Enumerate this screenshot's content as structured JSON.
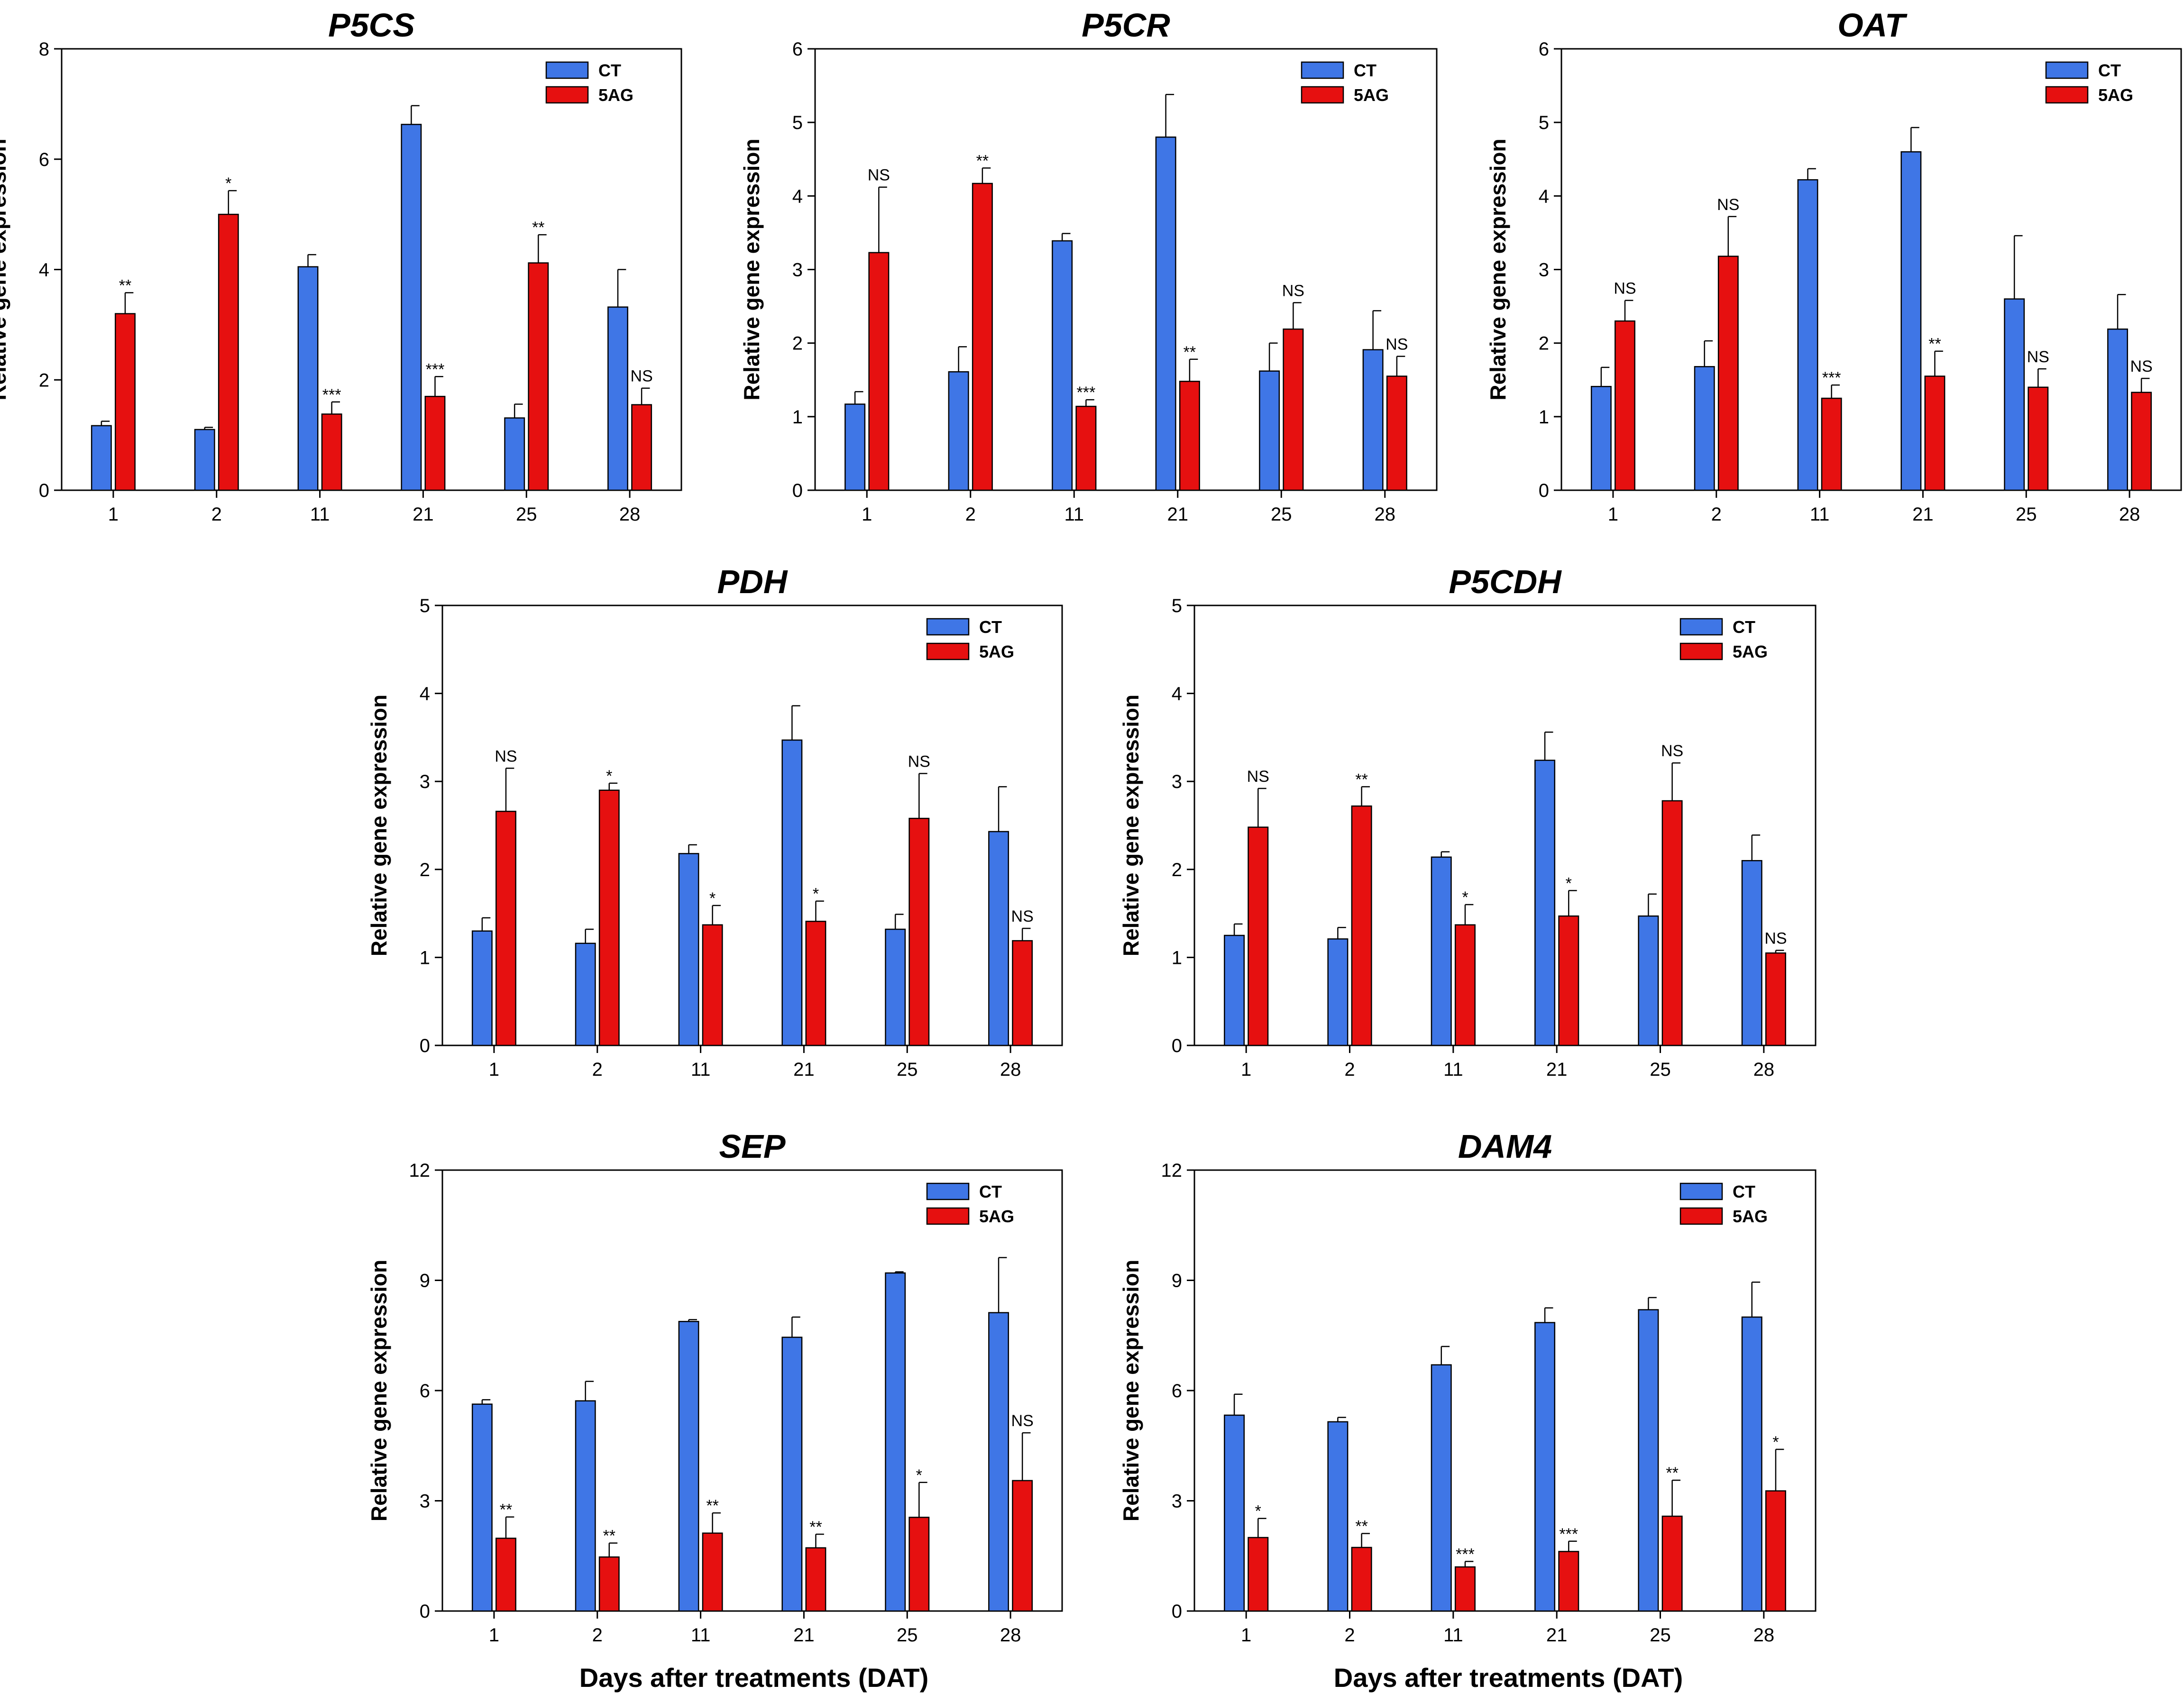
{
  "figure": {
    "x_axis_title": "Days after treatments (DAT)"
  },
  "chart_data": [
    {
      "type": "bar",
      "title": "P5CS",
      "xlabel": "",
      "ylabel": "Relative gene expression",
      "ylim": [
        0,
        8
      ],
      "yticks": [
        "0",
        "2",
        "4",
        "6",
        "8"
      ],
      "categories": [
        "1",
        "2",
        "11",
        "21",
        "25",
        "28"
      ],
      "colors": {
        "CT": "#3f76e6",
        "5AG": "#e61010"
      },
      "series": [
        {
          "name": "CT",
          "values": [
            1.17,
            1.1,
            4.05,
            6.63,
            1.31,
            3.32
          ],
          "errors": [
            0.08,
            0.04,
            0.22,
            0.34,
            0.25,
            0.68
          ]
        },
        {
          "name": "5AG",
          "values": [
            3.2,
            5.0,
            1.38,
            1.7,
            4.12,
            1.55
          ],
          "errors": [
            0.38,
            0.43,
            0.22,
            0.36,
            0.51,
            0.3
          ]
        }
      ],
      "significance": [
        "**",
        "*",
        "***",
        "***",
        "**",
        "NS"
      ]
    },
    {
      "type": "bar",
      "title": "P5CR",
      "xlabel": "",
      "ylabel": "Relative gene expression",
      "ylim": [
        0,
        6
      ],
      "yticks": [
        "0",
        "1",
        "2",
        "3",
        "4",
        "5",
        "6"
      ],
      "categories": [
        "1",
        "2",
        "11",
        "21",
        "25",
        "28"
      ],
      "colors": {
        "CT": "#3f76e6",
        "5AG": "#e61010"
      },
      "series": [
        {
          "name": "CT",
          "values": [
            1.17,
            1.61,
            3.39,
            4.8,
            1.62,
            1.91
          ],
          "errors": [
            0.17,
            0.34,
            0.1,
            0.58,
            0.38,
            0.53
          ]
        },
        {
          "name": "5AG",
          "values": [
            3.23,
            4.17,
            1.14,
            1.48,
            2.19,
            1.55
          ],
          "errors": [
            0.89,
            0.21,
            0.09,
            0.3,
            0.36,
            0.27
          ]
        }
      ],
      "significance": [
        "NS",
        "**",
        "***",
        "**",
        "NS",
        "NS"
      ]
    },
    {
      "type": "bar",
      "title": "OAT",
      "xlabel": "",
      "ylabel": "Relative gene expression",
      "ylim": [
        0,
        6
      ],
      "yticks": [
        "0",
        "1",
        "2",
        "3",
        "4",
        "5",
        "6"
      ],
      "categories": [
        "1",
        "2",
        "11",
        "21",
        "25",
        "28"
      ],
      "colors": {
        "CT": "#3f76e6",
        "5AG": "#e61010"
      },
      "series": [
        {
          "name": "CT",
          "values": [
            1.41,
            1.68,
            4.22,
            4.6,
            2.6,
            2.19
          ],
          "errors": [
            0.26,
            0.35,
            0.15,
            0.33,
            0.86,
            0.47
          ]
        },
        {
          "name": "5AG",
          "values": [
            2.3,
            3.18,
            1.25,
            1.55,
            1.4,
            1.33
          ],
          "errors": [
            0.28,
            0.54,
            0.18,
            0.34,
            0.25,
            0.19
          ]
        }
      ],
      "significance": [
        "NS",
        "NS",
        "***",
        "**",
        "NS",
        "NS"
      ]
    },
    {
      "type": "bar",
      "title": "PDH",
      "xlabel": "",
      "ylabel": "Relative gene expression",
      "ylim": [
        0,
        5
      ],
      "yticks": [
        "0",
        "1",
        "2",
        "3",
        "4",
        "5"
      ],
      "categories": [
        "1",
        "2",
        "11",
        "21",
        "25",
        "28"
      ],
      "colors": {
        "CT": "#3f76e6",
        "5AG": "#e61010"
      },
      "series": [
        {
          "name": "CT",
          "values": [
            1.3,
            1.16,
            2.18,
            3.47,
            1.32,
            2.43
          ],
          "errors": [
            0.15,
            0.16,
            0.1,
            0.39,
            0.17,
            0.51
          ]
        },
        {
          "name": "5AG",
          "values": [
            2.66,
            2.9,
            1.37,
            1.41,
            2.58,
            1.19
          ],
          "errors": [
            0.49,
            0.08,
            0.22,
            0.23,
            0.51,
            0.14
          ]
        }
      ],
      "significance": [
        "NS",
        "*",
        "*",
        "*",
        "NS",
        "NS"
      ]
    },
    {
      "type": "bar",
      "title": "P5CDH",
      "xlabel": "",
      "ylabel": "Relative gene expression",
      "ylim": [
        0,
        5
      ],
      "yticks": [
        "0",
        "1",
        "2",
        "3",
        "4",
        "5"
      ],
      "categories": [
        "1",
        "2",
        "11",
        "21",
        "25",
        "28"
      ],
      "colors": {
        "CT": "#3f76e6",
        "5AG": "#e61010"
      },
      "series": [
        {
          "name": "CT",
          "values": [
            1.25,
            1.21,
            2.14,
            3.24,
            1.47,
            2.1
          ],
          "errors": [
            0.13,
            0.13,
            0.06,
            0.32,
            0.25,
            0.29
          ]
        },
        {
          "name": "5AG",
          "values": [
            2.48,
            2.72,
            1.37,
            1.47,
            2.78,
            1.05
          ],
          "errors": [
            0.44,
            0.22,
            0.23,
            0.29,
            0.43,
            0.03
          ]
        }
      ],
      "significance": [
        "NS",
        "**",
        "*",
        "*",
        "NS",
        "NS"
      ]
    },
    {
      "type": "bar",
      "title": "SEP",
      "xlabel": "",
      "ylabel": "Relative gene expression",
      "ylim": [
        0,
        12
      ],
      "yticks": [
        "0",
        "3",
        "6",
        "9",
        "12"
      ],
      "categories": [
        "1",
        "2",
        "11",
        "21",
        "25",
        "28"
      ],
      "colors": {
        "CT": "#3f76e6",
        "5AG": "#e61010"
      },
      "series": [
        {
          "name": "CT",
          "values": [
            5.63,
            5.72,
            7.88,
            7.45,
            9.2,
            8.12
          ],
          "errors": [
            0.12,
            0.53,
            0.05,
            0.55,
            0.03,
            1.5
          ]
        },
        {
          "name": "5AG",
          "values": [
            1.98,
            1.47,
            2.12,
            1.72,
            2.55,
            3.55
          ],
          "errors": [
            0.58,
            0.38,
            0.55,
            0.37,
            0.95,
            1.3
          ]
        }
      ],
      "significance": [
        "**",
        "**",
        "**",
        "**",
        "*",
        "NS"
      ]
    },
    {
      "type": "bar",
      "title": "DAM4",
      "xlabel": "",
      "ylabel": "Relative gene expression",
      "ylim": [
        0,
        12
      ],
      "yticks": [
        "0",
        "3",
        "6",
        "9",
        "12"
      ],
      "categories": [
        "1",
        "2",
        "11",
        "21",
        "25",
        "28"
      ],
      "colors": {
        "CT": "#3f76e6",
        "5AG": "#e61010"
      },
      "series": [
        {
          "name": "CT",
          "values": [
            5.33,
            5.15,
            6.7,
            7.85,
            8.2,
            8.0
          ],
          "errors": [
            0.57,
            0.12,
            0.5,
            0.4,
            0.33,
            0.95
          ]
        },
        {
          "name": "5AG",
          "values": [
            2.0,
            1.73,
            1.2,
            1.62,
            2.58,
            3.27
          ],
          "errors": [
            0.52,
            0.38,
            0.15,
            0.28,
            0.98,
            1.13
          ]
        }
      ],
      "significance": [
        "*",
        "**",
        "***",
        "***",
        "**",
        "*"
      ]
    }
  ]
}
